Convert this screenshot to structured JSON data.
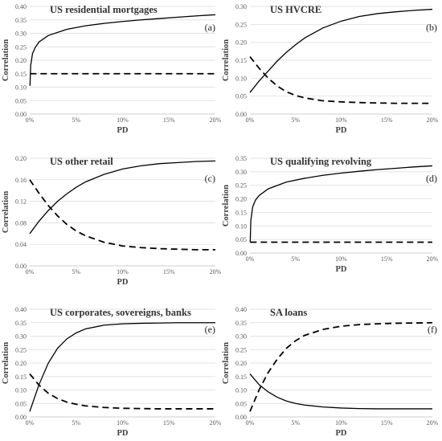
{
  "chart_data": [
    {
      "type": "line",
      "panel_id": "a",
      "title": "US residential mortgages",
      "tag": "(a)",
      "xlabel": "PD",
      "ylabel": "Correlation",
      "xlim": [
        0,
        0.2
      ],
      "ylim": [
        0,
        0.4
      ],
      "xticks": [
        0,
        0.05,
        0.1,
        0.15,
        0.2
      ],
      "xtick_labels": [
        "0%",
        "5%",
        "10%",
        "15%",
        "20%"
      ],
      "yticks": [
        0,
        0.05,
        0.1,
        0.15,
        0.2,
        0.25,
        0.3,
        0.35,
        0.4
      ],
      "ytick_labels": [
        "0.00",
        "0.05",
        "0.10",
        "0.15",
        "0.20",
        "0.25",
        "0.30",
        "0.35",
        "0.40"
      ],
      "grid": true,
      "legend": "none",
      "series": [
        {
          "style": "solid",
          "x": [
            0.0003,
            0.001,
            0.003,
            0.006,
            0.01,
            0.02,
            0.04,
            0.06,
            0.08,
            0.1,
            0.12,
            0.14,
            0.16,
            0.18,
            0.2
          ],
          "y": [
            0.105,
            0.18,
            0.225,
            0.248,
            0.268,
            0.292,
            0.315,
            0.328,
            0.337,
            0.344,
            0.35,
            0.355,
            0.36,
            0.365,
            0.369
          ]
        },
        {
          "style": "dashed",
          "x": [
            0.0003,
            0.2
          ],
          "y": [
            0.15,
            0.15
          ]
        }
      ]
    },
    {
      "type": "line",
      "panel_id": "b",
      "title": "US HVCRE",
      "tag": "(b)",
      "xlabel": "PD",
      "ylabel": "Correlation",
      "xlim": [
        0,
        0.2
      ],
      "ylim": [
        0,
        0.3
      ],
      "xticks": [
        0,
        0.05,
        0.1,
        0.15,
        0.2
      ],
      "xtick_labels": [
        "0%",
        "5%",
        "10%",
        "15%",
        "20%"
      ],
      "yticks": [
        0,
        0.05,
        0.1,
        0.15,
        0.2,
        0.25,
        0.3
      ],
      "ytick_labels": [
        "0.00",
        "0.05",
        "0.10",
        "0.15",
        "0.20",
        "0.25",
        "0.30"
      ],
      "grid": true,
      "legend": "none",
      "series": [
        {
          "style": "solid",
          "x": [
            0,
            0.01,
            0.02,
            0.03,
            0.04,
            0.05,
            0.06,
            0.08,
            0.1,
            0.12,
            0.14,
            0.16,
            0.18,
            0.2
          ],
          "y": [
            0.06,
            0.092,
            0.12,
            0.148,
            0.172,
            0.193,
            0.212,
            0.24,
            0.259,
            0.272,
            0.28,
            0.285,
            0.289,
            0.292
          ]
        },
        {
          "style": "dashed",
          "x": [
            0,
            0.01,
            0.02,
            0.03,
            0.04,
            0.05,
            0.06,
            0.08,
            0.1,
            0.12,
            0.14,
            0.16,
            0.18,
            0.2
          ],
          "y": [
            0.16,
            0.128,
            0.1,
            0.078,
            0.062,
            0.052,
            0.045,
            0.037,
            0.034,
            0.032,
            0.031,
            0.03,
            0.03,
            0.03
          ]
        }
      ]
    },
    {
      "type": "line",
      "panel_id": "c",
      "title": "US other retail",
      "tag": "(c)",
      "xlabel": "PD",
      "ylabel": "Correlation",
      "xlim": [
        0,
        0.2
      ],
      "ylim": [
        0,
        0.2
      ],
      "xticks": [
        0,
        0.05,
        0.1,
        0.15,
        0.2
      ],
      "xtick_labels": [
        "0%",
        "5%",
        "10%",
        "15%",
        "20%"
      ],
      "yticks": [
        0,
        0.04,
        0.08,
        0.12,
        0.16,
        0.2
      ],
      "ytick_labels": [
        "0.00",
        "0.04",
        "0.08",
        "0.12",
        "0.16",
        "0.20"
      ],
      "grid": true,
      "legend": "none",
      "series": [
        {
          "style": "solid",
          "x": [
            0,
            0.01,
            0.02,
            0.03,
            0.04,
            0.05,
            0.06,
            0.08,
            0.1,
            0.12,
            0.14,
            0.16,
            0.18,
            0.2
          ],
          "y": [
            0.06,
            0.083,
            0.103,
            0.12,
            0.134,
            0.146,
            0.156,
            0.17,
            0.18,
            0.186,
            0.19,
            0.192,
            0.194,
            0.195
          ]
        },
        {
          "style": "dashed",
          "x": [
            0,
            0.01,
            0.02,
            0.03,
            0.04,
            0.05,
            0.06,
            0.08,
            0.1,
            0.12,
            0.14,
            0.16,
            0.18,
            0.2
          ],
          "y": [
            0.16,
            0.135,
            0.112,
            0.093,
            0.077,
            0.065,
            0.056,
            0.044,
            0.037,
            0.034,
            0.032,
            0.031,
            0.03,
            0.03
          ]
        }
      ]
    },
    {
      "type": "line",
      "panel_id": "d",
      "title": "US qualifying revolving",
      "tag": "(d)",
      "xlabel": "PD",
      "ylabel": "Correlation",
      "xlim": [
        0,
        0.2
      ],
      "ylim": [
        0,
        0.35
      ],
      "xticks": [
        0,
        0.05,
        0.1,
        0.15,
        0.2
      ],
      "xtick_labels": [
        "0%",
        "5%",
        "10%",
        "15%",
        "20%"
      ],
      "yticks": [
        0,
        0.05,
        0.1,
        0.15,
        0.2,
        0.25,
        0.3,
        0.35
      ],
      "ytick_labels": [
        "0.00",
        "0.05",
        "0.10",
        "0.15",
        "0.20",
        "0.25",
        "0.30",
        "0.35"
      ],
      "grid": true,
      "legend": "none",
      "series": [
        {
          "style": "solid",
          "x": [
            0.0003,
            0.001,
            0.003,
            0.006,
            0.01,
            0.02,
            0.04,
            0.06,
            0.08,
            0.1,
            0.12,
            0.14,
            0.16,
            0.18,
            0.2
          ],
          "y": [
            0.04,
            0.12,
            0.17,
            0.195,
            0.212,
            0.237,
            0.262,
            0.276,
            0.287,
            0.295,
            0.302,
            0.308,
            0.313,
            0.318,
            0.322
          ]
        },
        {
          "style": "dashed",
          "x": [
            0.0003,
            0.2
          ],
          "y": [
            0.04,
            0.04
          ]
        }
      ]
    },
    {
      "type": "line",
      "panel_id": "e",
      "title": "US corporates, sovereigns, banks",
      "tag": "(e)",
      "xlabel": "PD",
      "ylabel": "Correlation",
      "xlim": [
        0,
        0.2
      ],
      "ylim": [
        0,
        0.4
      ],
      "xticks": [
        0,
        0.05,
        0.1,
        0.15,
        0.2
      ],
      "xtick_labels": [
        "0%",
        "5%",
        "10%",
        "15%",
        "20%"
      ],
      "yticks": [
        0,
        0.05,
        0.1,
        0.15,
        0.2,
        0.25,
        0.3,
        0.35,
        0.4
      ],
      "ytick_labels": [
        "0.00",
        "0.05",
        "0.10",
        "0.15",
        "0.20",
        "0.25",
        "0.30",
        "0.35",
        "0.40"
      ],
      "grid": true,
      "legend": "none",
      "series": [
        {
          "style": "solid",
          "x": [
            0,
            0.01,
            0.02,
            0.03,
            0.04,
            0.05,
            0.06,
            0.08,
            0.1,
            0.12,
            0.14,
            0.16,
            0.18,
            0.2
          ],
          "y": [
            0.02,
            0.12,
            0.2,
            0.255,
            0.29,
            0.312,
            0.327,
            0.341,
            0.346,
            0.348,
            0.349,
            0.35,
            0.35,
            0.35
          ]
        },
        {
          "style": "dashed",
          "x": [
            0,
            0.01,
            0.02,
            0.03,
            0.04,
            0.05,
            0.06,
            0.08,
            0.1,
            0.12,
            0.14,
            0.16,
            0.18,
            0.2
          ],
          "y": [
            0.16,
            0.118,
            0.088,
            0.068,
            0.055,
            0.047,
            0.041,
            0.035,
            0.032,
            0.031,
            0.03,
            0.03,
            0.03,
            0.03
          ]
        }
      ]
    },
    {
      "type": "line",
      "panel_id": "f",
      "title": "SA loans",
      "tag": "(f)",
      "xlabel": "PD",
      "ylabel": "Correlation",
      "xlim": [
        0,
        0.2
      ],
      "ylim": [
        0,
        0.4
      ],
      "xticks": [
        0,
        0.05,
        0.1,
        0.15,
        0.2
      ],
      "xtick_labels": [
        "0%",
        "5%",
        "10%",
        "15%",
        "20%"
      ],
      "yticks": [
        0,
        0.05,
        0.1,
        0.15,
        0.2,
        0.25,
        0.3,
        0.35,
        0.4
      ],
      "ytick_labels": [
        "0.00",
        "0.05",
        "0.10",
        "0.15",
        "0.20",
        "0.25",
        "0.30",
        "0.35",
        "0.40"
      ],
      "grid": true,
      "legend": "none",
      "series": [
        {
          "style": "solid",
          "x": [
            0,
            0.01,
            0.02,
            0.03,
            0.04,
            0.05,
            0.06,
            0.08,
            0.1,
            0.12,
            0.14,
            0.16,
            0.18,
            0.2
          ],
          "y": [
            0.16,
            0.12,
            0.093,
            0.073,
            0.059,
            0.05,
            0.044,
            0.037,
            0.033,
            0.031,
            0.03,
            0.03,
            0.03,
            0.03
          ]
        },
        {
          "style": "dashed",
          "x": [
            0,
            0.01,
            0.02,
            0.03,
            0.04,
            0.05,
            0.06,
            0.08,
            0.1,
            0.12,
            0.14,
            0.16,
            0.18,
            0.2
          ],
          "y": [
            0.02,
            0.1,
            0.165,
            0.215,
            0.255,
            0.283,
            0.303,
            0.325,
            0.337,
            0.343,
            0.346,
            0.348,
            0.349,
            0.35
          ]
        }
      ]
    }
  ]
}
